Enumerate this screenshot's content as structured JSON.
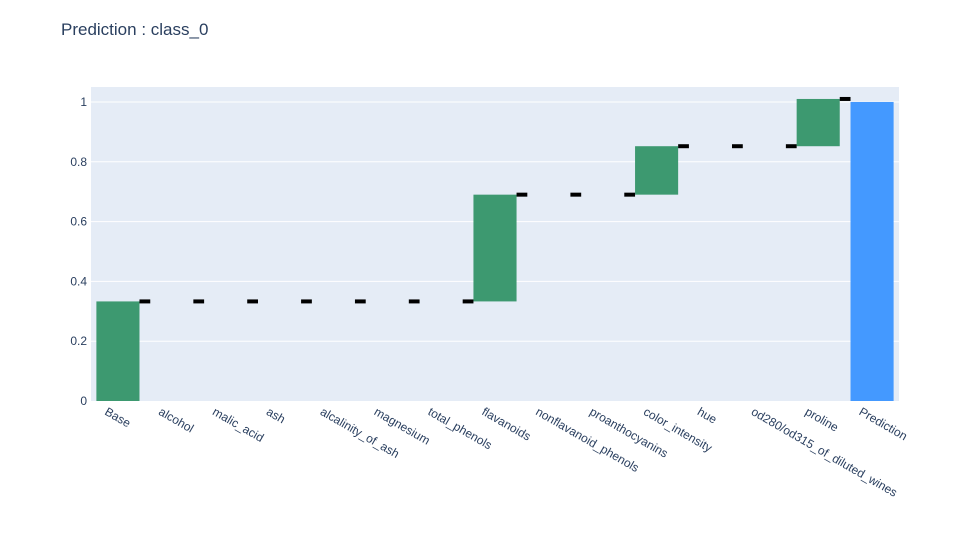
{
  "chart_data": {
    "type": "waterfall",
    "title": "Prediction : class_0",
    "categories": [
      "Base",
      "alcohol",
      "malic_acid",
      "ash",
      "alcalinity_of_ash",
      "magnesium",
      "total_phenols",
      "flavanoids",
      "nonflavanoid_phenols",
      "proanthocyanins",
      "color_intensity",
      "hue",
      "od280/od315_of_diluted_wines",
      "proline",
      "Prediction"
    ],
    "values": [
      0.333,
      0,
      0,
      0,
      0,
      0,
      0,
      0.357,
      0,
      0,
      0.162,
      0,
      0,
      0.158,
      1.0
    ],
    "measures": [
      "relative",
      "relative",
      "relative",
      "relative",
      "relative",
      "relative",
      "relative",
      "relative",
      "relative",
      "relative",
      "relative",
      "relative",
      "relative",
      "relative",
      "total"
    ],
    "y_ticks": [
      "0",
      "0.2",
      "0.4",
      "0.6",
      "0.8",
      "1"
    ],
    "ylim": [
      0,
      1.05
    ],
    "grid": true,
    "colors": {
      "increasing": "#3d9970",
      "total": "#4499ff",
      "connector": "#000000",
      "plot_bg": "#e5ecf6",
      "grid": "#ffffff",
      "text": "#2a3f5f"
    }
  }
}
